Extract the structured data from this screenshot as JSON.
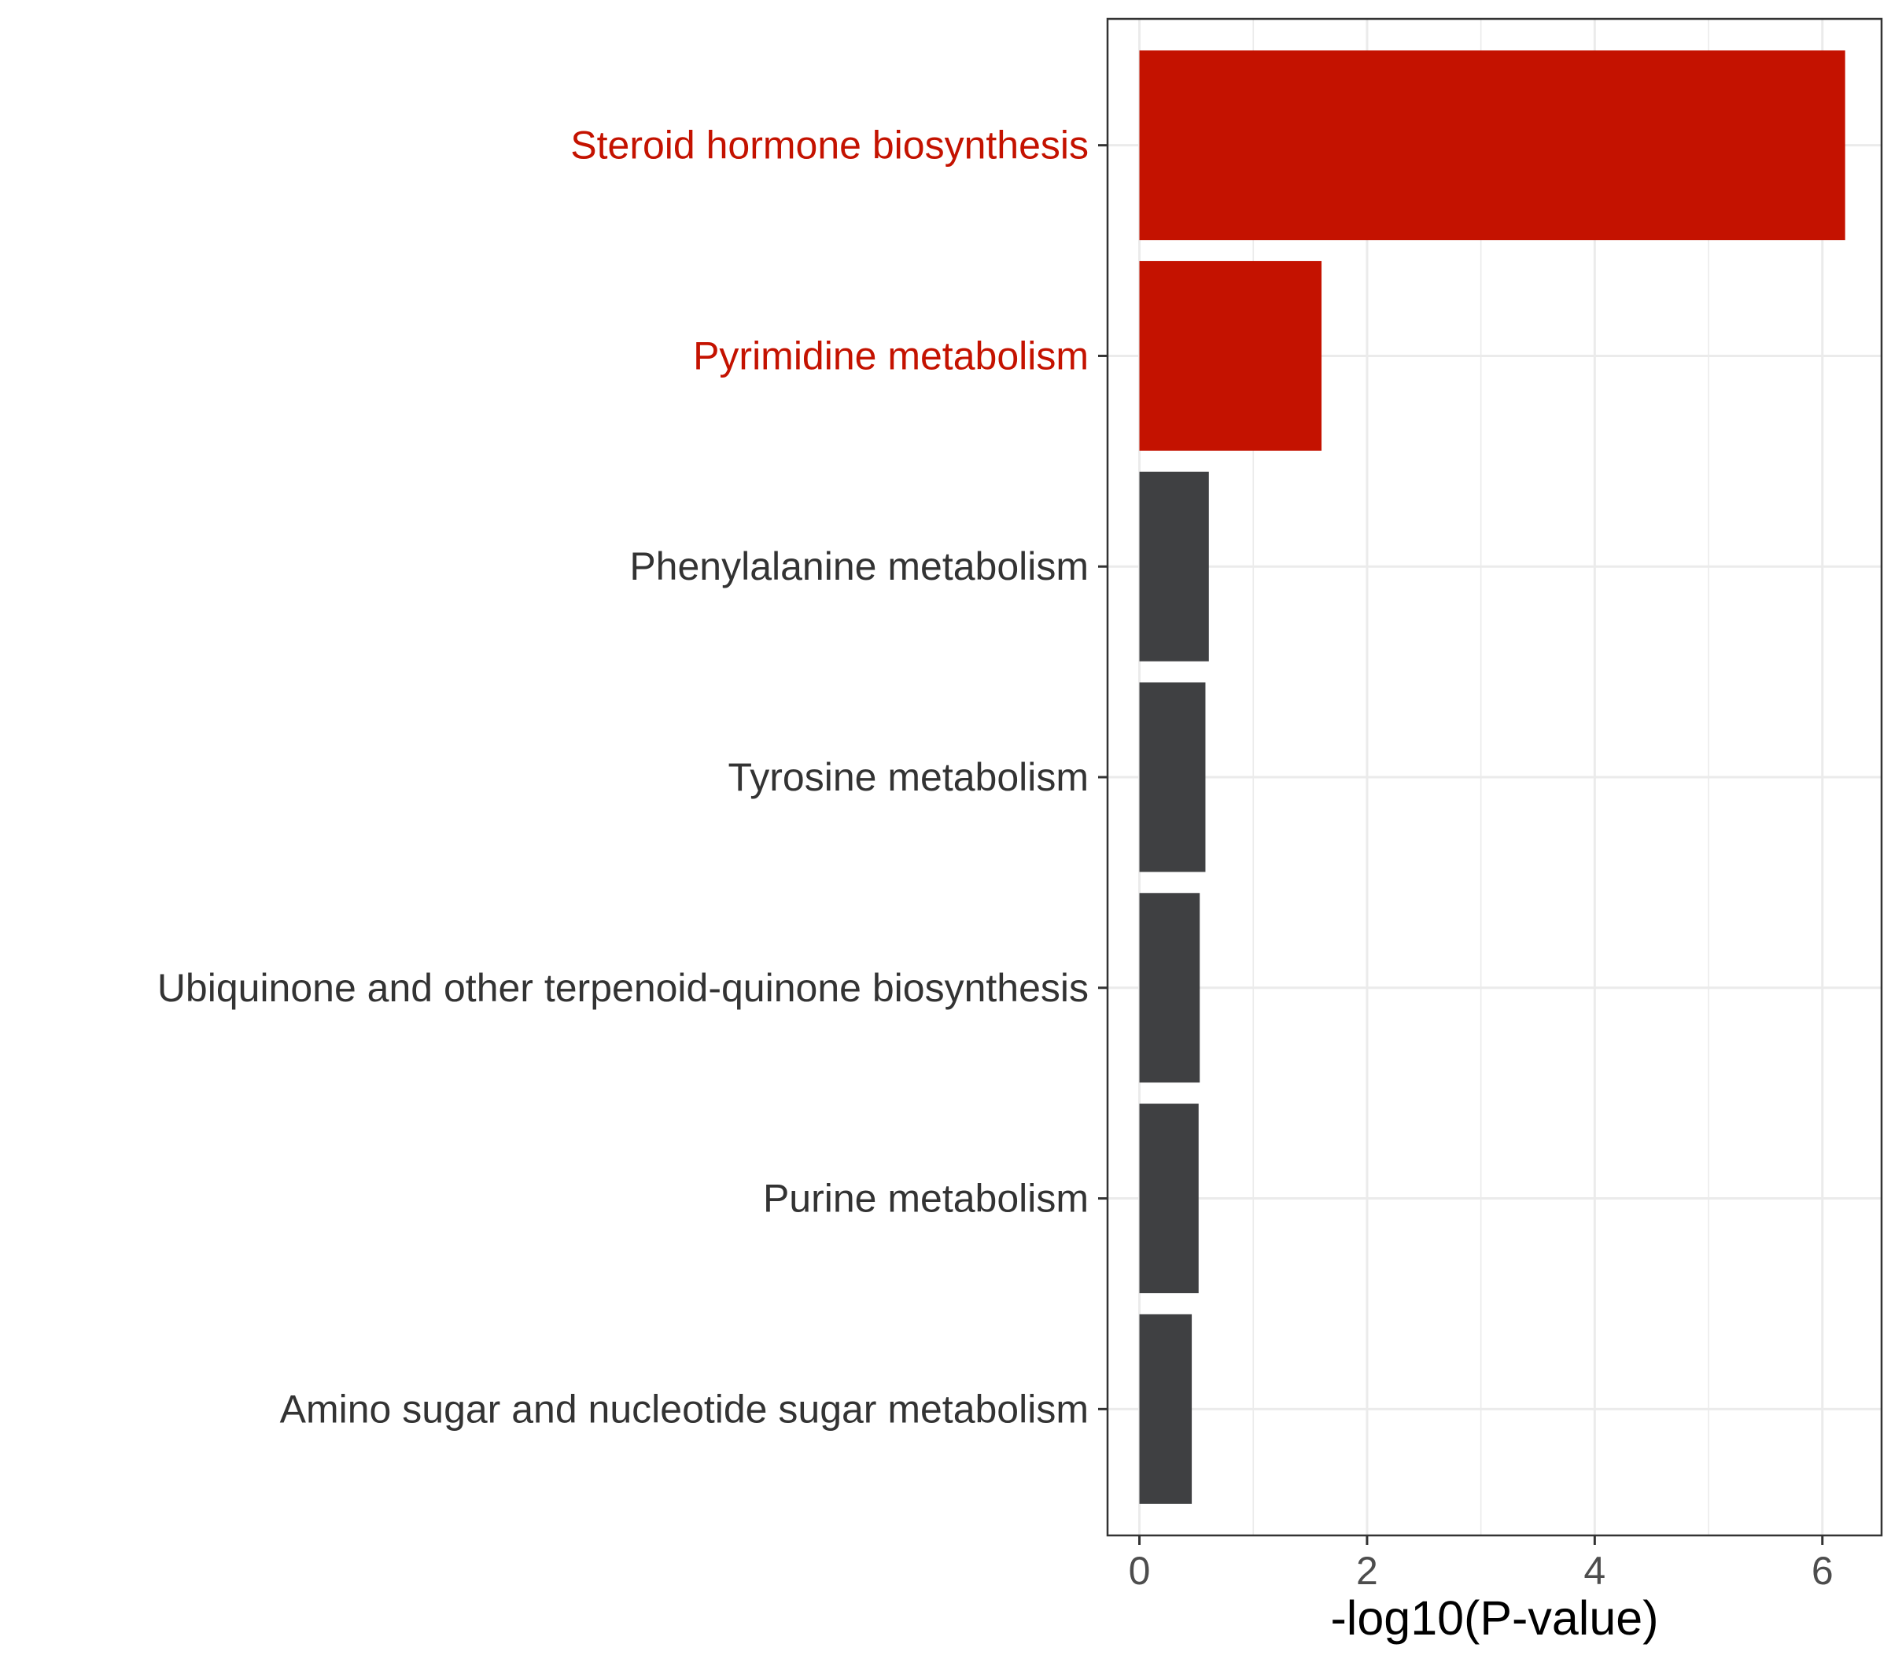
{
  "chart_data": {
    "type": "bar",
    "orientation": "horizontal",
    "categories": [
      "Steroid hormone biosynthesis",
      "Pyrimidine metabolism",
      "Phenylalanine metabolism",
      "Tyrosine metabolism",
      "Ubiquinone and other terpenoid-quinone biosynthesis",
      "Purine metabolism",
      "Amino sugar and nucleotide sugar metabolism"
    ],
    "values": [
      6.2,
      1.6,
      0.61,
      0.58,
      0.53,
      0.52,
      0.46
    ],
    "highlighted": [
      true,
      true,
      false,
      false,
      false,
      false,
      false
    ],
    "xlabel": "-log10(P-value)",
    "ylabel": "",
    "xlim": [
      -0.28,
      6.52
    ],
    "x_ticks": [
      0,
      2,
      4,
      6
    ],
    "x_tick_labels": [
      "0",
      "2",
      "4",
      "6"
    ],
    "grid": true,
    "colors": {
      "highlight": "#c41200",
      "default": "#3f4042",
      "highlight_label": "#c41200",
      "default_label": "#333333"
    }
  }
}
